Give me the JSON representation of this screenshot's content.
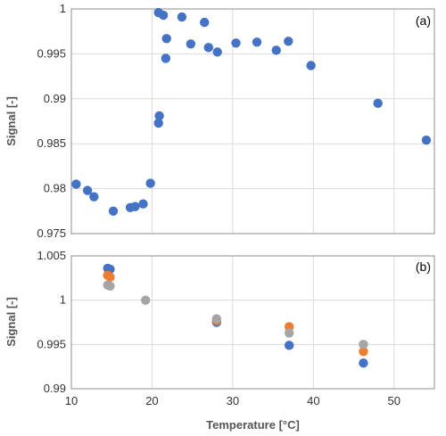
{
  "chart_data": [
    {
      "type": "scatter",
      "panel_label": "(a)",
      "ylabel": "Signal [-]",
      "xlim": [
        10,
        55
      ],
      "ylim": [
        0.975,
        1.0
      ],
      "yticks": [
        "0.975",
        "0.98",
        "0.985",
        "0.99",
        "0.995",
        "1"
      ],
      "grid": true,
      "series": [
        {
          "color": "#4472C4",
          "points": [
            [
              10.6,
              0.9805
            ],
            [
              12.0,
              0.9798
            ],
            [
              12.8,
              0.9791
            ],
            [
              15.2,
              0.9775
            ],
            [
              17.3,
              0.9779
            ],
            [
              17.9,
              0.978
            ],
            [
              18.9,
              0.9783
            ],
            [
              19.8,
              0.9806
            ],
            [
              20.8,
              0.9873
            ],
            [
              20.9,
              0.9881
            ],
            [
              20.8,
              0.9996
            ],
            [
              21.4,
              0.9993
            ],
            [
              21.8,
              0.9967
            ],
            [
              21.7,
              0.9945
            ],
            [
              23.7,
              0.9991
            ],
            [
              24.8,
              0.9961
            ],
            [
              26.5,
              0.9985
            ],
            [
              27.0,
              0.9957
            ],
            [
              28.1,
              0.9952
            ],
            [
              30.4,
              0.9962
            ],
            [
              33.0,
              0.9963
            ],
            [
              35.4,
              0.9954
            ],
            [
              36.9,
              0.9964
            ],
            [
              39.7,
              0.9937
            ],
            [
              48.0,
              0.9895
            ],
            [
              54.0,
              0.9854
            ]
          ]
        }
      ]
    },
    {
      "type": "scatter",
      "panel_label": "(b)",
      "xlabel": "Temperature [°C]",
      "ylabel": "Signal [-]",
      "xlim": [
        10,
        55
      ],
      "ylim": [
        0.99,
        1.005
      ],
      "xticks": [
        "10",
        "20",
        "30",
        "40",
        "50"
      ],
      "yticks": [
        "0.99",
        "0.995",
        "1",
        "1.005"
      ],
      "grid": true,
      "series": [
        {
          "color": "#4472C4",
          "points": [
            [
              14.5,
              1.0036
            ],
            [
              14.8,
              1.0035
            ],
            [
              28.0,
              0.9975
            ],
            [
              37.0,
              0.9949
            ],
            [
              46.2,
              0.9929
            ]
          ]
        },
        {
          "color": "#ED7D31",
          "points": [
            [
              14.5,
              1.0028
            ],
            [
              14.8,
              1.0026
            ],
            [
              28.0,
              0.9977
            ],
            [
              37.0,
              0.997
            ],
            [
              46.2,
              0.9942
            ]
          ]
        },
        {
          "color": "#A5A5A5",
          "points": [
            [
              14.5,
              1.0017
            ],
            [
              14.8,
              1.0016
            ],
            [
              19.2,
              1.0
            ],
            [
              28.0,
              0.9979
            ],
            [
              37.0,
              0.9963
            ],
            [
              46.2,
              0.995
            ]
          ]
        }
      ]
    }
  ]
}
